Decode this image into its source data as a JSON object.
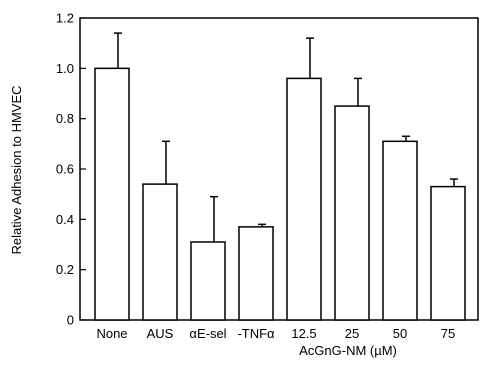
{
  "chart_data": {
    "type": "bar",
    "ylabel": "Relative Adhesion to HMVEC",
    "group_label": "AcGnG-NM (µM)",
    "ylim": [
      0,
      1.2
    ],
    "yticks": [
      0,
      0.2,
      0.4,
      0.6,
      0.8,
      1.0,
      1.2
    ],
    "ytick_labels": [
      "0",
      "0.2",
      "0.4",
      "0.6",
      "0.8",
      "1.0",
      "1.2"
    ],
    "categories": [
      "None",
      "AUS",
      "αE-sel",
      "-TNFα",
      "12.5",
      "25",
      "50",
      "75"
    ],
    "values": [
      1.0,
      0.54,
      0.31,
      0.37,
      0.96,
      0.85,
      0.71,
      0.53
    ],
    "errors": [
      0.14,
      0.17,
      0.18,
      0.01,
      0.16,
      0.11,
      0.02,
      0.03
    ],
    "bar_fill": "#ffffff",
    "bar_stroke": "#000000",
    "grid": false,
    "legend": "none"
  }
}
